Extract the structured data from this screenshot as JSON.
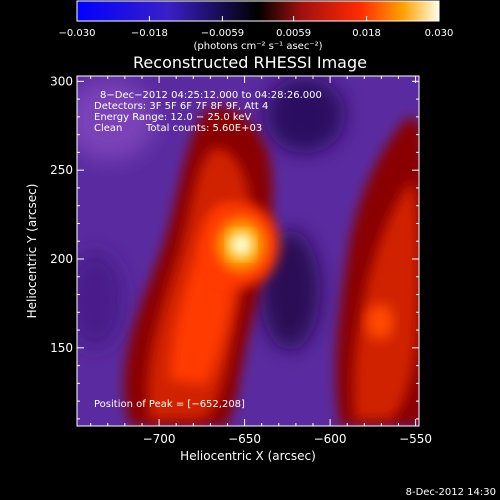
{
  "chart_data": {
    "type": "heatmap",
    "title": "Reconstructed RHESSI Image",
    "xlabel": "Heliocentric X (arcsec)",
    "ylabel": "Heliocentric Y (arcsec)",
    "xlim": [
      -748,
      -548
    ],
    "ylim": [
      106,
      303
    ],
    "x_ticks": [
      -700,
      -650,
      -600,
      -550
    ],
    "x_tick_labels": [
      "−700",
      "−650",
      "−600",
      "−550"
    ],
    "y_ticks": [
      150,
      200,
      250,
      300
    ],
    "y_tick_labels": [
      "150",
      "200",
      "250",
      "300"
    ],
    "colorbar": {
      "range": [
        -0.03,
        0.03
      ],
      "ticks": [
        -0.03,
        -0.018,
        -0.0059,
        0.0059,
        0.018,
        0.03
      ],
      "tick_labels": [
        "−0.030",
        "−0.018",
        "−0.0059",
        "0.0059",
        "0.018",
        "0.030"
      ],
      "units_label": "(photons cm⁻² s⁻¹ asec⁻²)"
    },
    "annotations": [
      "8−Dec−2012 04:25:12.000 to 04:28:26.000",
      "Detectors: 3F 5F 6F 7F 8F 9F, Att 4",
      "Energy Range: 12.0 − 25.0 keV",
      "Clean",
      "Total counts: 5.60E+03"
    ],
    "peak_label": "Position of Peak = [−652,208]",
    "peak": [
      -652,
      208
    ],
    "grid": false
  },
  "footer_timestamp": "8-Dec-2012 14:30"
}
